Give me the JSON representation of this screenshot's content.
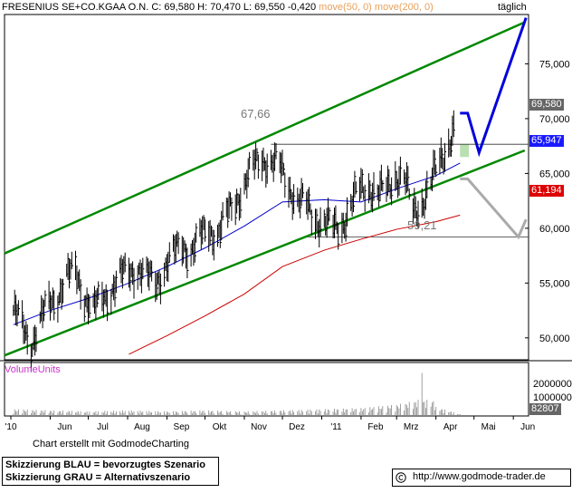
{
  "header": {
    "symbol": "FRESENIUS SE+CO.KGAA O.N.",
    "close_label": "C:",
    "close_value": "69,580",
    "high_label": "H:",
    "high_value": "70,470",
    "low_label": "L:",
    "low_value": "69,550",
    "change_value": "-0,420",
    "ma50_label": "move(50, 0)",
    "ma200_label": "move(200, 0)",
    "period_label": "täglich"
  },
  "colors": {
    "price": "#000000",
    "ma50": "#0000cc",
    "ma200": "#cc0000",
    "channel": "#008800",
    "scenario_blue": "#0000dd",
    "scenario_gray": "#aaaaaa",
    "target_zone": "#b8e0b0",
    "price_badge": "#666666",
    "ma50_badge": "#1a1aff",
    "ma200_badge": "#dd0000",
    "volume_label": "#cc33cc"
  },
  "annotations": {
    "level_high": "67,66",
    "level_low": "59,21"
  },
  "badges": {
    "price": "69,580",
    "ma50": "65,947",
    "ma200": "61,194",
    "volume": "82807"
  },
  "volume_panel": {
    "label": "VolumeUnits",
    "tick_top": "2000000",
    "tick_mid": "1000000"
  },
  "footer": {
    "credit": "Chart erstellt mit GodmodeCharting",
    "legend_blue": "Skizzierung BLAU = bevorzugtes Szenario",
    "legend_gray": "Skizzierung GRAU = Alternativszenario",
    "url": "http://www.godmode-trader.de"
  },
  "chart_data": {
    "type": "line",
    "title": "FRESENIUS SE+CO.KGAA O.N.",
    "period": "täglich",
    "xlabel": "",
    "ylabel": "",
    "x_tick_labels": [
      "'10",
      "Jun",
      "Jul",
      "Aug",
      "Sep",
      "Okt",
      "Nov",
      "Dez",
      "'11",
      "Feb",
      "Mrz",
      "Apr",
      "Mai",
      "Jun"
    ],
    "y_tick_labels": [
      "75,000",
      "70,000",
      "65,000",
      "60,000",
      "55,000",
      "50,000"
    ],
    "ylim": [
      48,
      79.5
    ],
    "grid": false,
    "series": [
      {
        "name": "FRESENIUS SE+CO.KGAA O.N.",
        "style": "ohlc",
        "x": [
          "2010-05-03",
          "2010-05-10",
          "2010-05-17",
          "2010-05-24",
          "2010-05-31",
          "2010-06-07",
          "2010-06-14",
          "2010-06-21",
          "2010-06-28",
          "2010-07-05",
          "2010-07-12",
          "2010-07-19",
          "2010-07-26",
          "2010-08-02",
          "2010-08-09",
          "2010-08-16",
          "2010-08-23",
          "2010-08-30",
          "2010-09-06",
          "2010-09-13",
          "2010-09-20",
          "2010-09-27",
          "2010-10-04",
          "2010-10-11",
          "2010-10-18",
          "2010-10-25",
          "2010-11-01",
          "2010-11-08",
          "2010-11-15",
          "2010-11-22",
          "2010-11-29",
          "2010-12-06",
          "2010-12-13",
          "2010-12-20",
          "2010-12-27",
          "2011-01-03",
          "2011-01-10",
          "2011-01-17",
          "2011-01-24",
          "2011-01-31",
          "2011-02-07",
          "2011-02-14",
          "2011-02-21",
          "2011-02-28",
          "2011-03-07",
          "2011-03-14",
          "2011-03-21",
          "2011-03-28",
          "2011-04-04",
          "2011-04-11",
          "2011-04-18"
        ],
        "values": [
          52.5,
          51.0,
          49.5,
          51.5,
          53.0,
          54.0,
          55.5,
          56.0,
          54.0,
          52.5,
          53.5,
          54.5,
          55.5,
          56.0,
          56.5,
          55.5,
          55.0,
          56.5,
          57.5,
          58.5,
          58.0,
          59.0,
          60.0,
          59.5,
          61.0,
          62.5,
          64.0,
          65.5,
          66.5,
          66.0,
          65.5,
          64.0,
          62.5,
          62.0,
          61.0,
          60.5,
          60.0,
          60.5,
          62.0,
          63.5,
          64.0,
          63.0,
          63.5,
          65.0,
          64.5,
          61.5,
          62.5,
          64.0,
          66.0,
          68.0,
          69.58
        ]
      },
      {
        "name": "move(50, 0)",
        "style": "line",
        "x": [
          "2010-05-03",
          "2010-06-01",
          "2010-07-01",
          "2010-08-02",
          "2010-09-01",
          "2010-10-01",
          "2010-11-01",
          "2010-12-01",
          "2011-01-03",
          "2011-02-01",
          "2011-03-01",
          "2011-04-01",
          "2011-04-20"
        ],
        "values": [
          51.2,
          52.5,
          53.6,
          55.0,
          56.5,
          58.2,
          60.2,
          62.4,
          62.6,
          62.4,
          63.6,
          64.8,
          65.947
        ]
      },
      {
        "name": "move(200, 0)",
        "style": "line",
        "x": [
          "2010-08-02",
          "2010-09-01",
          "2010-10-01",
          "2010-11-01",
          "2010-12-01",
          "2011-01-03",
          "2011-02-01",
          "2011-03-01",
          "2011-04-01",
          "2011-04-20"
        ],
        "values": [
          48.5,
          50.2,
          52.0,
          54.0,
          56.5,
          58.0,
          59.0,
          59.9,
          60.6,
          61.194
        ]
      }
    ],
    "horizontal_levels": [
      {
        "label": "67,66",
        "value": 67.66
      },
      {
        "label": "59,21",
        "value": 59.21
      }
    ],
    "channel_lines": [
      {
        "name": "upper",
        "points": [
          {
            "x": "2010-04-26",
            "y": 57.7
          },
          {
            "x": "2011-06-10",
            "y": 78.8
          }
        ]
      },
      {
        "name": "lower",
        "points": [
          {
            "x": "2010-04-26",
            "y": 48.4
          },
          {
            "x": "2011-06-10",
            "y": 67.1
          }
        ]
      }
    ],
    "scenarios": [
      {
        "name": "bevorzugtes Szenario",
        "color": "blue",
        "points": [
          {
            "x": "2011-04-20",
            "y": 70.5
          },
          {
            "x": "2011-04-26",
            "y": 70.5
          },
          {
            "x": "2011-05-05",
            "y": 66.9
          },
          {
            "x": "2011-06-11",
            "y": 79.2
          }
        ]
      },
      {
        "name": "Alternativszenario",
        "color": "gray",
        "points": [
          {
            "x": "2011-04-20",
            "y": 64.5
          },
          {
            "x": "2011-04-26",
            "y": 64.5
          },
          {
            "x": "2011-06-05",
            "y": 59.2
          },
          {
            "x": "2011-06-11",
            "y": 60.8
          }
        ]
      }
    ],
    "target_zone": {
      "x_from": "2011-04-20",
      "x_to": "2011-04-27",
      "y_from": 66.5,
      "y_to": 67.66
    },
    "volume": {
      "label": "VolumeUnits",
      "ylim": [
        0,
        2600000
      ],
      "last_value": 82807,
      "x": [
        "2010-05-03",
        "2010-06-01",
        "2010-07-01",
        "2010-08-02",
        "2010-09-01",
        "2010-10-01",
        "2010-11-01",
        "2010-12-01",
        "2011-01-03",
        "2011-02-01",
        "2011-03-01",
        "2011-03-15",
        "2011-03-20",
        "2011-04-01",
        "2011-04-20"
      ],
      "values": [
        300000,
        250000,
        200000,
        250000,
        200000,
        250000,
        200000,
        250000,
        300000,
        350000,
        500000,
        650000,
        2600000,
        400000,
        82807
      ]
    },
    "legend": "top-left"
  }
}
